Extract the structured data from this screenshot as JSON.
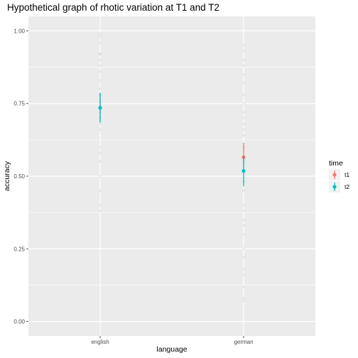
{
  "chart_data": {
    "type": "scatter",
    "title": "Hypothetical graph of rhotic variation at T1 and T2",
    "xlabel": "language",
    "ylabel": "accuracy",
    "categories": [
      "english",
      "german"
    ],
    "ylim": [
      -0.05,
      1.05
    ],
    "yticks": [
      "0.00",
      "0.25",
      "0.50",
      "0.75",
      "1.00"
    ],
    "ytick_values": [
      0.0,
      0.25,
      0.5,
      0.75,
      1.0
    ],
    "grid": true,
    "legend": {
      "title": "time",
      "position": "right"
    },
    "series": [
      {
        "name": "t1",
        "color": "#F8766D",
        "points": [
          {
            "category": "english",
            "mean": 0.735,
            "lower": 0.685,
            "upper": 0.787
          },
          {
            "category": "german",
            "mean": 0.565,
            "lower": 0.515,
            "upper": 0.615
          }
        ]
      },
      {
        "name": "t2",
        "color": "#00BFC4",
        "points": [
          {
            "category": "english",
            "mean": 0.735,
            "lower": 0.685,
            "upper": 0.787
          },
          {
            "category": "german",
            "mean": 0.518,
            "lower": 0.465,
            "upper": 0.57
          }
        ]
      }
    ],
    "raw_points": {
      "english": [
        0.99,
        0.98,
        0.96,
        0.92,
        0.92,
        0.9,
        0.88,
        0.86,
        0.83,
        0.8,
        0.78,
        0.76,
        0.74,
        0.72,
        0.7,
        0.68,
        0.66,
        0.6,
        0.58,
        0.55,
        0.5,
        0.45,
        0.4,
        0.38
      ],
      "german": [
        0.95,
        0.93,
        0.9,
        0.88,
        0.85,
        0.82,
        0.78,
        0.75,
        0.72,
        0.7,
        0.68,
        0.66,
        0.64,
        0.6,
        0.55,
        0.52,
        0.48,
        0.45,
        0.4,
        0.38,
        0.35,
        0.33,
        0.3,
        0.25,
        0.22,
        0.18,
        0.16,
        0.12,
        0.08,
        0.07
      ]
    }
  }
}
